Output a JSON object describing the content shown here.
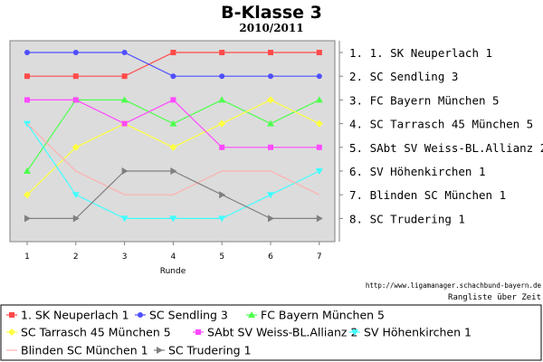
{
  "chart_data": {
    "type": "line",
    "title": "B-Klasse 3",
    "subtitle": "2010/2011",
    "xlabel": "Runde",
    "x": [
      1,
      2,
      3,
      4,
      5,
      6,
      7
    ],
    "y_inverted": true,
    "ylim": [
      1,
      8
    ],
    "grid": false,
    "legend_position": "bottom",
    "plot_background": "#dcdcdc",
    "series": [
      {
        "name": "1. SK Neuperlach 1",
        "color": "#ff4a4a",
        "marker": "square",
        "values": [
          2,
          2,
          2,
          1,
          1,
          1,
          1
        ]
      },
      {
        "name": "SC Sendling 3",
        "color": "#4f4fff",
        "marker": "circle",
        "values": [
          1,
          1,
          1,
          2,
          2,
          2,
          2
        ]
      },
      {
        "name": "FC Bayern München 5",
        "color": "#4eff4e",
        "marker": "triangle-up",
        "values": [
          6,
          3,
          3,
          4,
          3,
          4,
          3
        ]
      },
      {
        "name": "SC Tarrasch 45 München 5",
        "color": "#ffff40",
        "marker": "diamond",
        "values": [
          7,
          5,
          4,
          5,
          4,
          3,
          4
        ]
      },
      {
        "name": "SAbt SV Weiss-BL.Allianz 2",
        "color": "#ff4aff",
        "marker": "square",
        "values": [
          3,
          3,
          4,
          3,
          5,
          5,
          5
        ]
      },
      {
        "name": "SV Höhenkirchen 1",
        "color": "#40ffff",
        "marker": "triangle-down",
        "values": [
          4,
          7,
          8,
          8,
          8,
          7,
          6
        ]
      },
      {
        "name": "Blinden SC München 1",
        "color": "#ffafaf",
        "marker": "none",
        "values": [
          4,
          6,
          7,
          7,
          6,
          6,
          7
        ]
      },
      {
        "name": "SC Trudering 1",
        "color": "#808080",
        "marker": "triangle-right",
        "values": [
          8,
          8,
          6,
          6,
          7,
          8,
          8
        ]
      }
    ],
    "final_ranking": [
      "1. 1. SK Neuperlach 1",
      "2. SC Sendling 3",
      "3. FC Bayern München 5",
      "4. SC Tarrasch 45 München 5",
      "5. SAbt SV Weiss-BL.Allianz 2",
      "6. SV Höhenkirchen 1",
      "7. Blinden SC München 1",
      "8. SC Trudering 1"
    ]
  },
  "credit": {
    "url": "http://www.ligamanager.schachbund-bayern.de",
    "caption": "Rangliste über Zeit"
  }
}
